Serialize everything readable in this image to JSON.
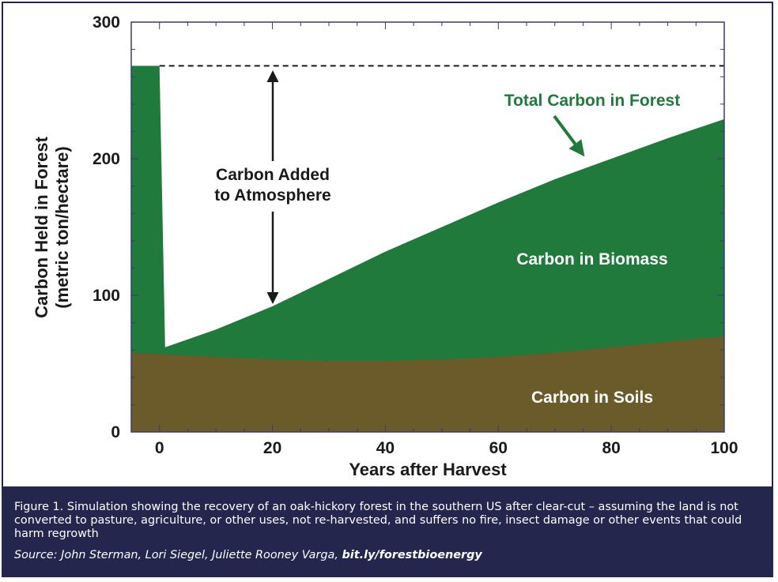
{
  "chart_data": {
    "type": "area",
    "title": "",
    "xlabel": "Years after Harvest",
    "ylabel": "Carbon Held in Forest",
    "ylabel_units": "(metric ton/hectare)",
    "xlim": [
      -5,
      100
    ],
    "ylim": [
      0,
      300
    ],
    "xticks": [
      0,
      20,
      40,
      60,
      80,
      100
    ],
    "yticks": [
      0,
      100,
      200,
      300
    ],
    "grid": false,
    "series": [
      {
        "name": "Carbon in Soils",
        "color": "#6b5a2a",
        "x": [
          -5,
          0,
          10,
          20,
          30,
          40,
          50,
          60,
          70,
          80,
          90,
          100
        ],
        "y": [
          58,
          57,
          55,
          53,
          52,
          52,
          53,
          55,
          58,
          62,
          66,
          70
        ]
      },
      {
        "name": "Total Carbon in Forest",
        "color": "#1f7a3c",
        "x": [
          -5,
          0,
          1,
          10,
          20,
          30,
          40,
          50,
          60,
          70,
          80,
          90,
          100
        ],
        "y": [
          268,
          268,
          62,
          75,
          92,
          112,
          132,
          150,
          168,
          185,
          200,
          215,
          229
        ]
      }
    ],
    "reference_line": {
      "y": 268,
      "style": "dashed",
      "x_from": 0,
      "x_to": 100
    },
    "annotations": {
      "total_label": "Total Carbon in Forest",
      "biomass_label": "Carbon in Biomass",
      "soils_label": "Carbon in Soils",
      "added_line1": "Carbon Added",
      "added_line2": "to Atmosphere"
    },
    "annotation_color": "#1f7a3c"
  },
  "caption": {
    "text": "Figure 1. Simulation showing the recovery of an oak-hickory forest in the southern US after clear-cut – assuming the land is not converted to pasture, agriculture, or other uses, not re-harvested, and suffers no fire, insect damage or other events that could harm regrowth",
    "source_prefix": "Source: John Sterman, Lori Siegel, Juliette Rooney Varga, ",
    "source_link": "bit.ly/forestbioenergy"
  }
}
